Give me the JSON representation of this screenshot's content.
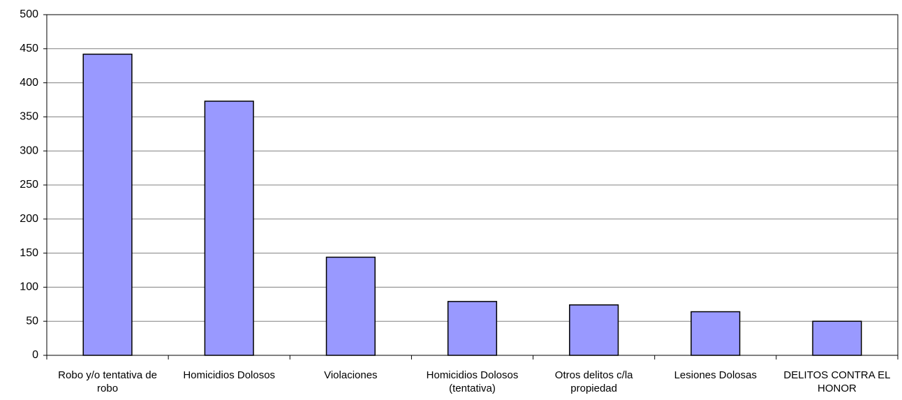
{
  "chart_data": {
    "type": "bar",
    "categories": [
      "Robo y/o tentativa de robo",
      "Homicidios Dolosos",
      "Violaciones",
      "Homicidios Dolosos (tentativa)",
      "Otros delitos c/la propiedad",
      "Lesiones Dolosas",
      "DELITOS CONTRA EL HONOR"
    ],
    "values": [
      442,
      373,
      144,
      79,
      74,
      64,
      50
    ],
    "color": "#9999ff",
    "ylim": [
      0,
      500
    ],
    "yticks": [
      0,
      50,
      100,
      150,
      200,
      250,
      300,
      350,
      400,
      450,
      500
    ],
    "grid": true
  }
}
